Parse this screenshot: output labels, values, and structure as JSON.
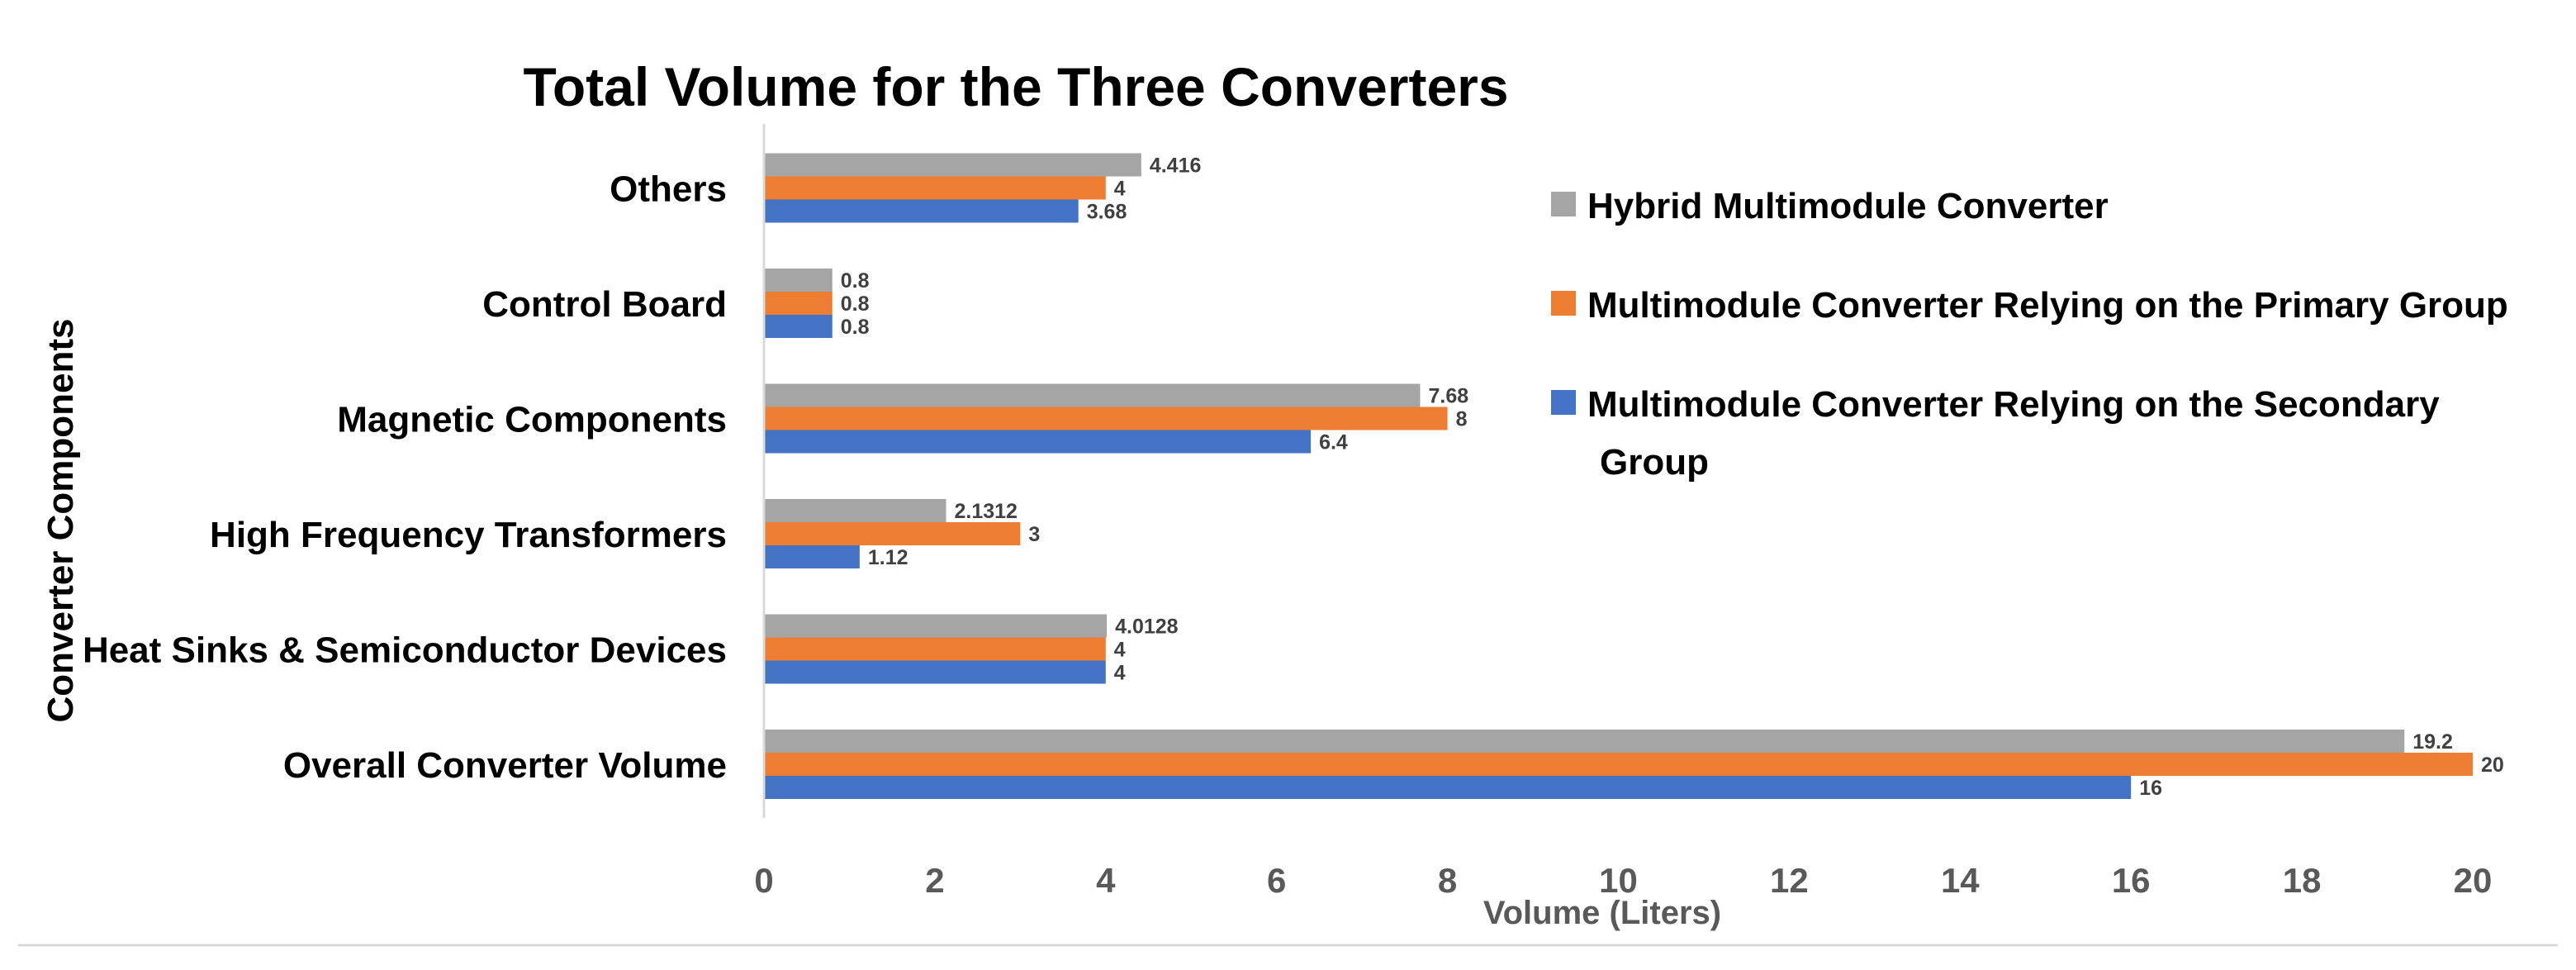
{
  "chart_data": {
    "type": "bar",
    "orientation": "horizontal",
    "title": "Total Volume for the Three Converters",
    "xlabel": "Volume (Liters)",
    "ylabel": "Converter Components",
    "xlim": [
      0,
      20
    ],
    "xticks": [
      0,
      2,
      4,
      6,
      8,
      10,
      12,
      14,
      16,
      18,
      20
    ],
    "grid": false,
    "legend_position": "top-right",
    "categories": [
      "Overall Converter Volume",
      "Heat Sinks & Semiconductor Devices",
      "High Frequency Transformers",
      "Magnetic Components",
      "Control Board",
      "Others"
    ],
    "series": [
      {
        "name": "Multimodule Converter Relying on the Secondary Group",
        "legend_lines": [
          "Multimodule Converter Relying on the Secondary",
          "Group"
        ],
        "color": "#4472c4",
        "values": [
          16,
          4,
          1.12,
          6.4,
          0.8,
          3.68
        ],
        "labels": [
          "16",
          "4",
          "1.12",
          "6.4",
          "0.8",
          "3.68"
        ]
      },
      {
        "name": "Multimodule Converter Relying on the Primary Group",
        "legend_lines": [
          "Multimodule Converter Relying on the Primary Group"
        ],
        "color": "#ed7d31",
        "values": [
          20,
          4,
          3,
          8,
          0.8,
          4
        ],
        "labels": [
          "20",
          "4",
          "3",
          "8",
          "0.8",
          "4"
        ]
      },
      {
        "name": "Hybrid Multimodule Converter",
        "legend_lines": [
          "Hybrid Multimodule Converter"
        ],
        "color": "#a5a5a5",
        "values": [
          19.2,
          4.0128,
          2.1312,
          7.68,
          0.8,
          4.416
        ],
        "labels": [
          "19.2",
          "4.0128",
          "2.1312",
          "7.68",
          "0.8",
          "4.416"
        ]
      }
    ],
    "legend_order": [
      2,
      1,
      0
    ]
  }
}
